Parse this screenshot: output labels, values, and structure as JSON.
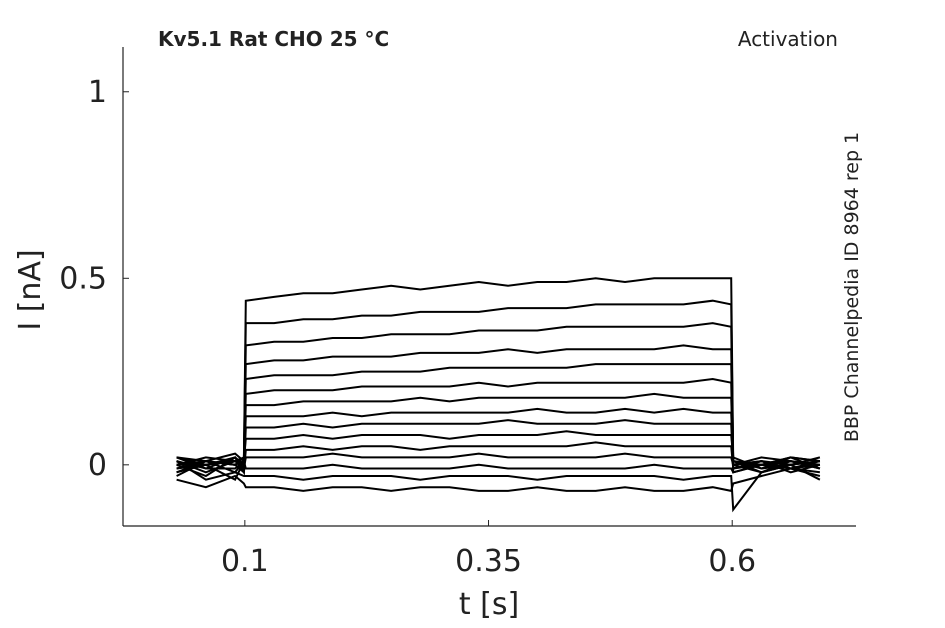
{
  "chart_data": {
    "type": "line",
    "title": "Kv5.1  Rat  CHO  25 °C",
    "annotation": "Activation",
    "side_label": "BBP Channelpedia ID 8964 rep 1",
    "xlabel": "t [s]",
    "ylabel": "I [nA]",
    "xlim": [
      -0.025,
      0.727
    ],
    "ylim": [
      -0.164,
      1.12
    ],
    "xticks": [
      0.1,
      0.35,
      0.6
    ],
    "yticks": [
      0,
      0.5,
      1
    ],
    "x": [
      0.03,
      0.06,
      0.09,
      0.099,
      0.101,
      0.13,
      0.16,
      0.19,
      0.22,
      0.25,
      0.28,
      0.31,
      0.34,
      0.37,
      0.4,
      0.43,
      0.46,
      0.49,
      0.52,
      0.55,
      0.58,
      0.599,
      0.601,
      0.63,
      0.66,
      0.69
    ],
    "series": [
      {
        "color": "#000000",
        "values": [
          0.02,
          0.01,
          0.03,
          0.01,
          0.44,
          0.45,
          0.46,
          0.46,
          0.47,
          0.48,
          0.47,
          0.48,
          0.49,
          0.48,
          0.49,
          0.49,
          0.5,
          0.49,
          0.5,
          0.5,
          0.5,
          0.5,
          0.01,
          0,
          0.02,
          0.01
        ]
      },
      {
        "color": "#000000",
        "values": [
          0,
          0.02,
          0.01,
          0.02,
          0.38,
          0.38,
          0.39,
          0.39,
          0.4,
          0.4,
          0.41,
          0.41,
          0.41,
          0.42,
          0.42,
          0.42,
          0.43,
          0.43,
          0.43,
          0.43,
          0.44,
          0.43,
          -0.01,
          0.01,
          0,
          0.02
        ]
      },
      {
        "color": "#000000",
        "values": [
          0.01,
          -0.01,
          0.02,
          0,
          0.32,
          0.33,
          0.33,
          0.34,
          0.34,
          0.35,
          0.35,
          0.35,
          0.36,
          0.36,
          0.36,
          0.37,
          0.37,
          0.37,
          0.37,
          0.37,
          0.38,
          0.37,
          0,
          0.02,
          0.01,
          0
        ]
      },
      {
        "color": "#000000",
        "values": [
          -0.01,
          0.01,
          0,
          0.01,
          0.27,
          0.28,
          0.28,
          0.29,
          0.29,
          0.29,
          0.3,
          0.3,
          0.3,
          0.31,
          0.3,
          0.31,
          0.31,
          0.31,
          0.31,
          0.32,
          0.31,
          0.31,
          0.01,
          -0.01,
          0.02,
          0.01
        ]
      },
      {
        "color": "#000000",
        "values": [
          0.02,
          0,
          0.01,
          -0.01,
          0.23,
          0.24,
          0.24,
          0.24,
          0.25,
          0.25,
          0.25,
          0.26,
          0.26,
          0.26,
          0.26,
          0.26,
          0.27,
          0.27,
          0.27,
          0.27,
          0.27,
          0.27,
          0,
          0.01,
          -0.01,
          0.01
        ]
      },
      {
        "color": "#000000",
        "values": [
          0,
          0.01,
          -0.02,
          0.01,
          0.19,
          0.2,
          0.2,
          0.2,
          0.21,
          0.21,
          0.21,
          0.21,
          0.22,
          0.21,
          0.22,
          0.22,
          0.22,
          0.22,
          0.22,
          0.22,
          0.23,
          0.22,
          -0.02,
          0,
          0.01,
          -0.01
        ]
      },
      {
        "color": "#000000",
        "values": [
          -0.02,
          0.01,
          0,
          0.02,
          0.16,
          0.16,
          0.17,
          0.17,
          0.17,
          0.17,
          0.18,
          0.17,
          0.18,
          0.18,
          0.18,
          0.18,
          0.18,
          0.18,
          0.19,
          0.18,
          0.18,
          0.18,
          0.01,
          -0.02,
          0,
          0.01
        ]
      },
      {
        "color": "#000000",
        "values": [
          0.01,
          -0.02,
          0.01,
          0,
          0.13,
          0.13,
          0.13,
          0.14,
          0.13,
          0.14,
          0.14,
          0.14,
          0.14,
          0.14,
          0.15,
          0.14,
          0.14,
          0.15,
          0.14,
          0.15,
          0.14,
          0.14,
          0,
          0.01,
          -0.01,
          0
        ]
      },
      {
        "color": "#000000",
        "values": [
          -0.01,
          0,
          0.02,
          -0.02,
          0.1,
          0.1,
          0.11,
          0.1,
          0.11,
          0.11,
          0.11,
          0.11,
          0.11,
          0.12,
          0.11,
          0.11,
          0.11,
          0.12,
          0.11,
          0.11,
          0.11,
          0.11,
          -0.01,
          0,
          0.02,
          -0.01
        ]
      },
      {
        "color": "#000000",
        "values": [
          0.02,
          -0.01,
          -0.01,
          0.01,
          0.07,
          0.07,
          0.08,
          0.07,
          0.08,
          0.08,
          0.08,
          0.07,
          0.08,
          0.08,
          0.08,
          0.09,
          0.08,
          0.08,
          0.08,
          0.08,
          0.08,
          0.08,
          0.02,
          -0.01,
          0,
          0.01
        ]
      },
      {
        "color": "#000000",
        "values": [
          -0.03,
          0.01,
          0,
          -0.02,
          0.04,
          0.04,
          0.05,
          0.04,
          0.05,
          0.05,
          0.04,
          0.05,
          0.05,
          0.05,
          0.05,
          0.05,
          0.06,
          0.05,
          0.05,
          0.05,
          0.05,
          0.05,
          -0.01,
          0.01,
          -0.02,
          0
        ]
      },
      {
        "color": "#000000",
        "values": [
          0,
          -0.03,
          0.02,
          -0.01,
          0.02,
          0.02,
          0.02,
          0.03,
          0.02,
          0.02,
          0.02,
          0.02,
          0.03,
          0.02,
          0.02,
          0.02,
          0.02,
          0.03,
          0.02,
          0.02,
          0.02,
          0.02,
          0,
          -0.02,
          0.01,
          -0.01
        ]
      },
      {
        "color": "#000000",
        "values": [
          -0.02,
          0,
          -0.04,
          0.01,
          -0.01,
          -0.01,
          -0.01,
          0,
          -0.01,
          -0.01,
          -0.01,
          -0.01,
          0,
          -0.01,
          -0.01,
          -0.01,
          -0.01,
          -0.01,
          0,
          -0.01,
          -0.01,
          -0.01,
          -0.02,
          0,
          -0.01,
          -0.02
        ]
      },
      {
        "color": "#000000",
        "values": [
          0.01,
          -0.04,
          -0.02,
          -0.03,
          -0.03,
          -0.03,
          -0.04,
          -0.03,
          -0.03,
          -0.03,
          -0.04,
          -0.03,
          -0.03,
          -0.03,
          -0.04,
          -0.03,
          -0.03,
          -0.03,
          -0.03,
          -0.04,
          -0.03,
          -0.03,
          -0.12,
          -0.02,
          0,
          -0.04
        ]
      },
      {
        "color": "#000000",
        "values": [
          -0.04,
          -0.06,
          -0.03,
          -0.05,
          -0.06,
          -0.06,
          -0.07,
          -0.06,
          -0.06,
          -0.07,
          -0.06,
          -0.06,
          -0.07,
          -0.07,
          -0.06,
          -0.07,
          -0.07,
          -0.06,
          -0.07,
          -0.07,
          -0.06,
          -0.07,
          -0.05,
          -0.03,
          -0.01,
          -0.03
        ]
      }
    ]
  }
}
